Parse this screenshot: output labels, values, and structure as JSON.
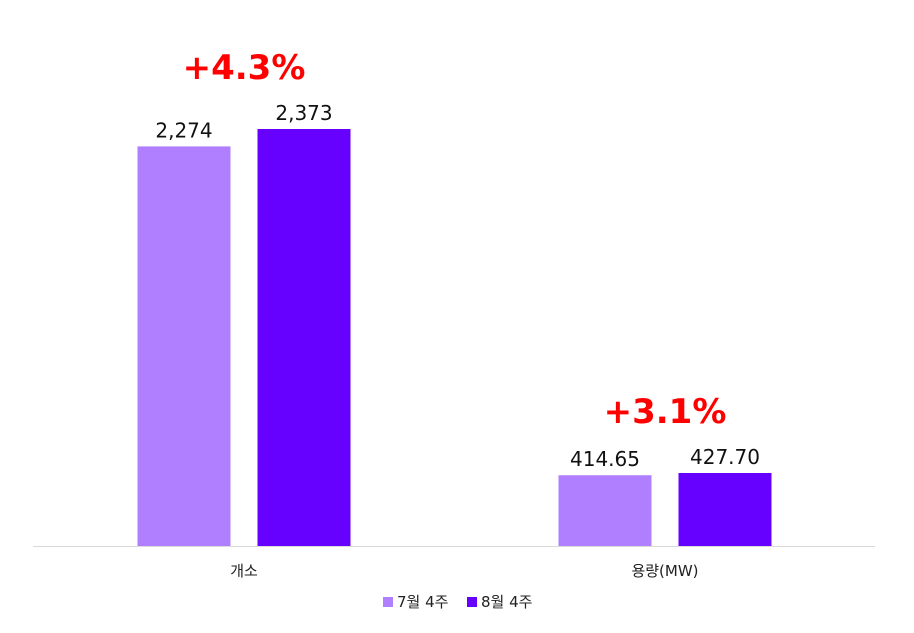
{
  "chart_data": {
    "type": "bar",
    "categories": [
      "개소",
      "용량(MW)"
    ],
    "series": [
      {
        "name": "7월 4주",
        "values": [
          2274,
          414.65
        ],
        "labels": [
          "2,274",
          "414.65"
        ],
        "color": "#B07FFF"
      },
      {
        "name": "8월 4주",
        "values": [
          2373,
          427.7
        ],
        "labels": [
          "2,373",
          "427.70"
        ],
        "color": "#6600FF"
      }
    ],
    "growth_labels": [
      "+4.3%",
      "+3.1%"
    ],
    "growth_color": "#FF0000",
    "axis_color": "#D9D9D9",
    "legend_position": "bottom",
    "grid": false,
    "title": "",
    "xlabel": "",
    "ylabel": ""
  }
}
